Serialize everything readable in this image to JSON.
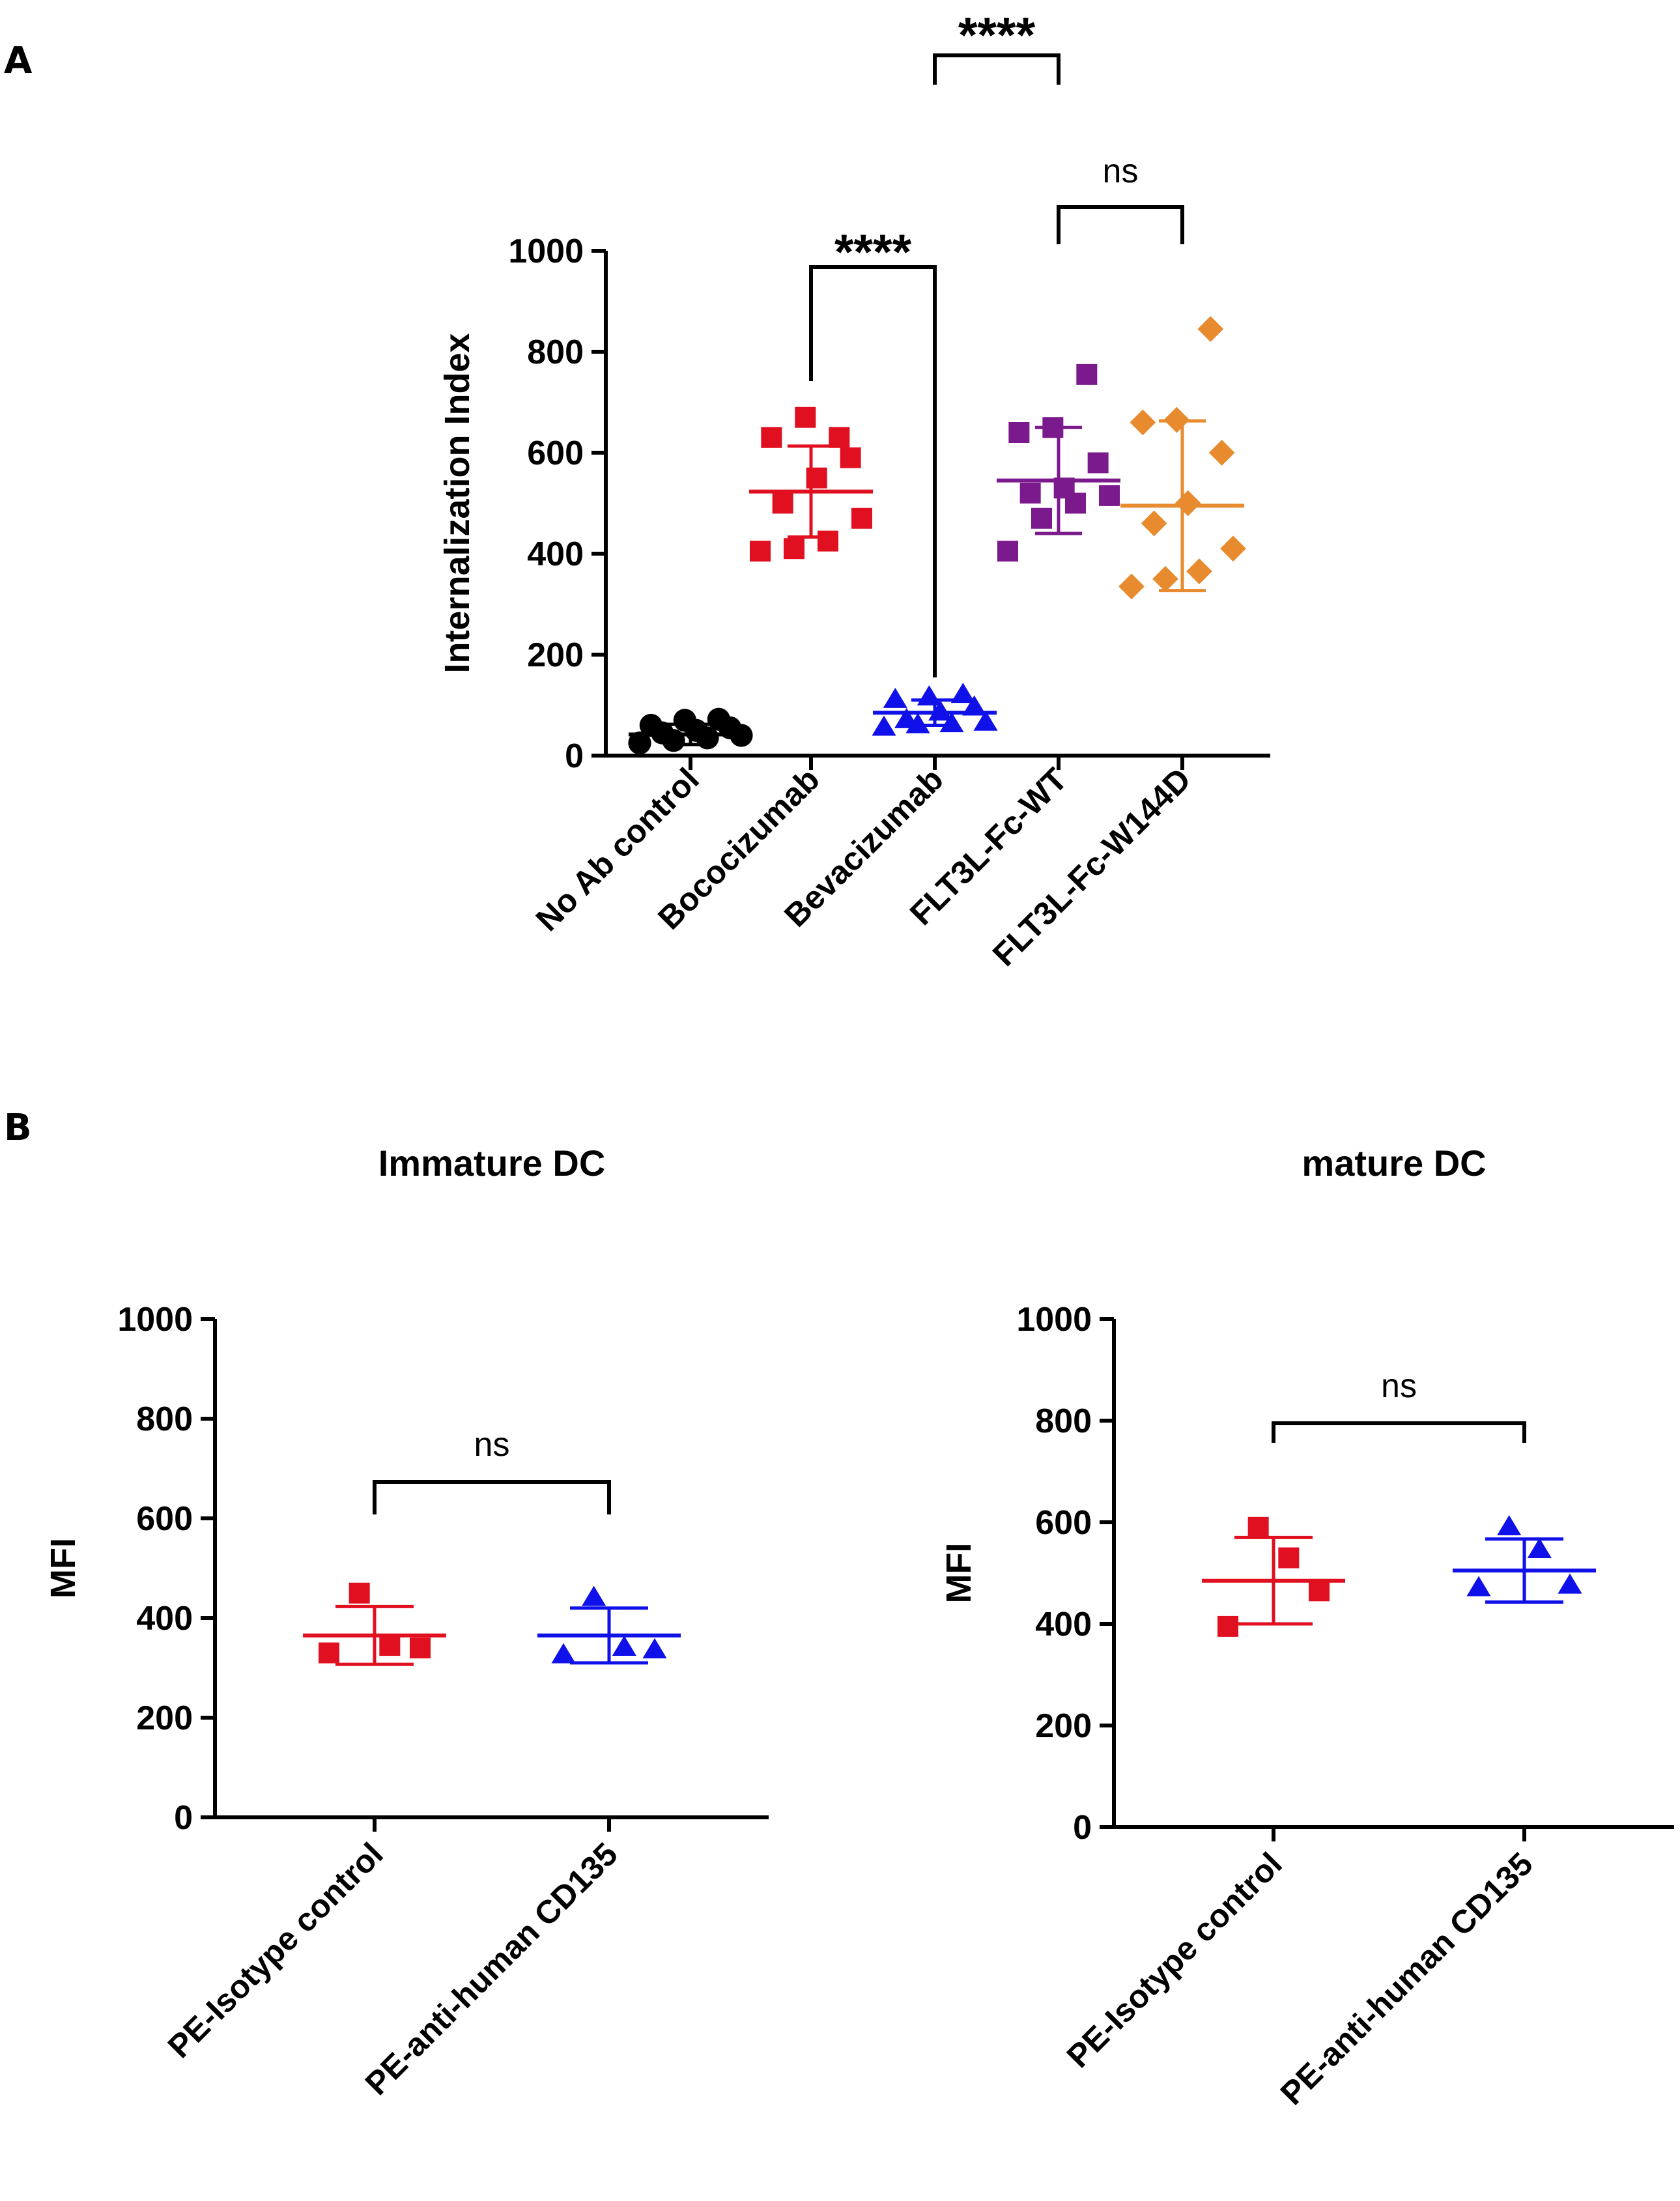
{
  "panel_labels": {
    "a": "A",
    "b": "B"
  },
  "chart_data": [
    {
      "id": "A",
      "type": "scatter",
      "title": "",
      "xlabel": "",
      "ylabel": "Internalization Index",
      "ylim": [
        0,
        1000
      ],
      "yticks": [
        0,
        200,
        400,
        600,
        800,
        1000
      ],
      "grid": false,
      "categories": [
        "No Ab control",
        "Bococizumab",
        "Bevacizumab",
        "FLT3L-Fc-WT",
        "FLT3L-Fc-W144D"
      ],
      "series": [
        {
          "name": "No Ab control",
          "marker": "circle",
          "color": "#000000",
          "mean": 42,
          "sd": 20,
          "values": [
            25,
            30,
            35,
            40,
            45,
            50,
            55,
            60,
            70,
            72
          ]
        },
        {
          "name": "Bococizumab",
          "marker": "square",
          "color": "#e01020",
          "mean": 523,
          "sd": 90,
          "values": [
            405,
            410,
            425,
            470,
            500,
            550,
            590,
            630,
            670,
            630
          ]
        },
        {
          "name": "Bevacizumab",
          "marker": "triangle",
          "color": "#1010e8",
          "mean": 85,
          "sd": 25,
          "values": [
            55,
            60,
            62,
            65,
            70,
            85,
            95,
            110,
            115,
            120
          ]
        },
        {
          "name": "FLT3L-Fc-WT",
          "marker": "square",
          "color": "#7a1a8c",
          "mean": 545,
          "sd": 105,
          "values": [
            405,
            470,
            500,
            515,
            520,
            530,
            580,
            640,
            650,
            755
          ]
        },
        {
          "name": "FLT3L-Fc-W144D",
          "marker": "diamond",
          "color": "#e88a2e",
          "mean": 495,
          "sd": 168,
          "values": [
            335,
            350,
            365,
            410,
            460,
            500,
            600,
            660,
            665,
            845
          ]
        }
      ],
      "comparisons": [
        {
          "from": "Bococizumab",
          "to": "Bevacizumab",
          "label": "****"
        },
        {
          "from": "FLT3L-Fc-WT",
          "to": "FLT3L-Fc-W144D",
          "label": "ns"
        },
        {
          "from": "Bevacizumab",
          "to": "FLT3L-Fc-WT",
          "label": "****"
        }
      ]
    },
    {
      "id": "B-immature",
      "type": "scatter",
      "title": "Immature DC",
      "xlabel": "",
      "ylabel": "MFI",
      "ylim": [
        0,
        1000
      ],
      "yticks": [
        0,
        200,
        400,
        600,
        800,
        1000
      ],
      "grid": false,
      "categories": [
        "PE-Isotype control",
        "PE-anti-human CD135"
      ],
      "series": [
        {
          "name": "PE-Isotype control",
          "marker": "square",
          "color": "#e01020",
          "mean": 365,
          "sd": 58,
          "values": [
            330,
            340,
            345,
            450
          ]
        },
        {
          "name": "PE-anti-human CD135",
          "marker": "triangle",
          "color": "#1010e8",
          "mean": 365,
          "sd": 55,
          "values": [
            325,
            335,
            340,
            440
          ]
        }
      ],
      "comparisons": [
        {
          "from": "PE-Isotype control",
          "to": "PE-anti-human CD135",
          "label": "ns"
        }
      ]
    },
    {
      "id": "B-mature",
      "type": "scatter",
      "title": "mature DC",
      "xlabel": "",
      "ylabel": "MFI",
      "ylim": [
        0,
        1000
      ],
      "yticks": [
        0,
        200,
        400,
        600,
        800,
        1000
      ],
      "grid": false,
      "categories": [
        "PE-Isotype control",
        "PE-anti-human CD135"
      ],
      "series": [
        {
          "name": "PE-Isotype control",
          "marker": "square",
          "color": "#e01020",
          "mean": 485,
          "sd": 85,
          "values": [
            395,
            465,
            530,
            590
          ]
        },
        {
          "name": "PE-anti-human CD135",
          "marker": "triangle",
          "color": "#1010e8",
          "mean": 505,
          "sd": 62,
          "values": [
            470,
            475,
            545,
            590
          ]
        }
      ],
      "comparisons": [
        {
          "from": "PE-Isotype control",
          "to": "PE-anti-human CD135",
          "label": "ns"
        }
      ]
    }
  ]
}
